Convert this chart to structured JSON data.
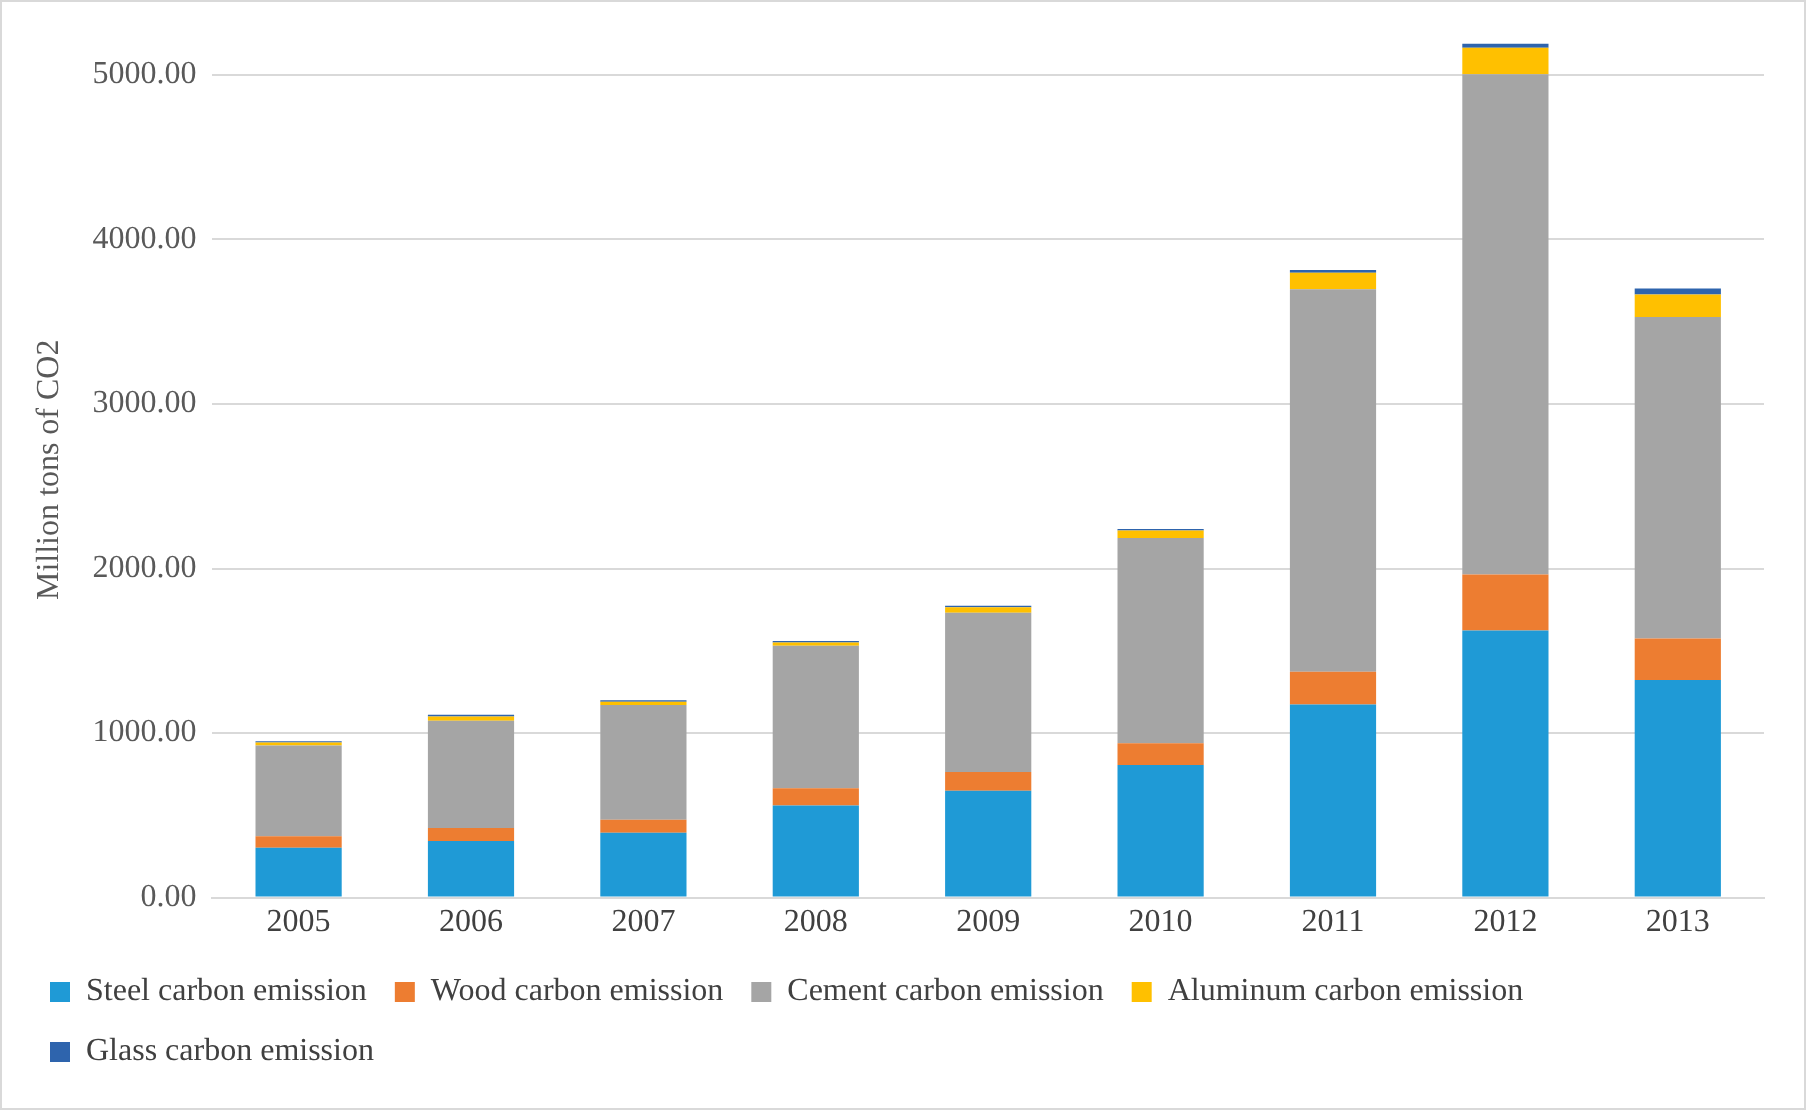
{
  "chart_data": {
    "type": "bar",
    "stacked": true,
    "ylabel": "Million tons of CO2",
    "categories": [
      "2005",
      "2006",
      "2007",
      "2008",
      "2009",
      "2010",
      "2011",
      "2012",
      "2013"
    ],
    "series": [
      {
        "name": "Steel carbon emission",
        "color": "#1f9ad6",
        "values": [
          303,
          344,
          394,
          560,
          649,
          806,
          1174,
          1624,
          1322
        ]
      },
      {
        "name": "Wood carbon emission",
        "color": "#ed7d31",
        "values": [
          70,
          79,
          79,
          104,
          115,
          132,
          198,
          339,
          252
        ]
      },
      {
        "name": "Cement carbon emission",
        "color": "#a5a5a5",
        "values": [
          552,
          652,
          697,
          866,
          967,
          1248,
          2326,
          3041,
          1955
        ]
      },
      {
        "name": "Aluminum carbon emission",
        "color": "#ffc000",
        "values": [
          17,
          25,
          21,
          20,
          33,
          45,
          100,
          161,
          136
        ]
      },
      {
        "name": "Glass carbon emission",
        "color": "#2e64ad",
        "values": [
          8,
          12,
          8,
          10,
          9,
          9,
          16,
          25,
          37
        ]
      }
    ],
    "ylim": [
      0,
      5200
    ],
    "yticks": [
      {
        "value": 0,
        "label": "0.00"
      },
      {
        "value": 1000,
        "label": "1000.00"
      },
      {
        "value": 2000,
        "label": "2000.00"
      },
      {
        "value": 3000,
        "label": "3000.00"
      },
      {
        "value": 4000,
        "label": "4000.00"
      },
      {
        "value": 5000,
        "label": "5000.00"
      }
    ],
    "grid": "y",
    "legend": "bottom"
  }
}
